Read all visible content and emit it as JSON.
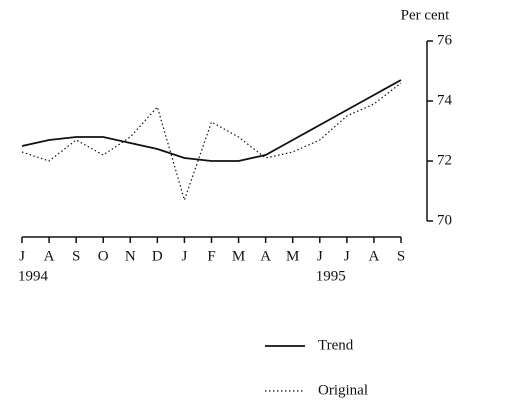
{
  "chart_data": {
    "type": "line",
    "y_axis_label": "Per cent",
    "categories": [
      "J",
      "A",
      "S",
      "O",
      "N",
      "D",
      "J",
      "F",
      "M",
      "A",
      "M",
      "J",
      "J",
      "A",
      "S"
    ],
    "year_labels": [
      "1994",
      null,
      null,
      null,
      null,
      null,
      null,
      null,
      null,
      null,
      null,
      "1995",
      null,
      null,
      null
    ],
    "series": [
      {
        "name": "Trend",
        "color": "#111111",
        "style": "solid",
        "values": [
          72.5,
          72.7,
          72.8,
          72.8,
          72.6,
          72.4,
          72.1,
          72.0,
          72.0,
          72.2,
          72.7,
          73.2,
          73.7,
          74.2,
          74.7
        ]
      },
      {
        "name": "Original",
        "color": "#111111",
        "style": "dotted",
        "values": [
          72.3,
          72.0,
          72.7,
          72.2,
          72.8,
          73.8,
          70.7,
          73.3,
          72.8,
          72.1,
          72.3,
          72.7,
          73.5,
          73.9,
          74.6
        ]
      }
    ],
    "ylim": [
      70,
      76
    ],
    "yticks": [
      70,
      72,
      74,
      76
    ],
    "y_axis_side": "right",
    "grid": false
  }
}
